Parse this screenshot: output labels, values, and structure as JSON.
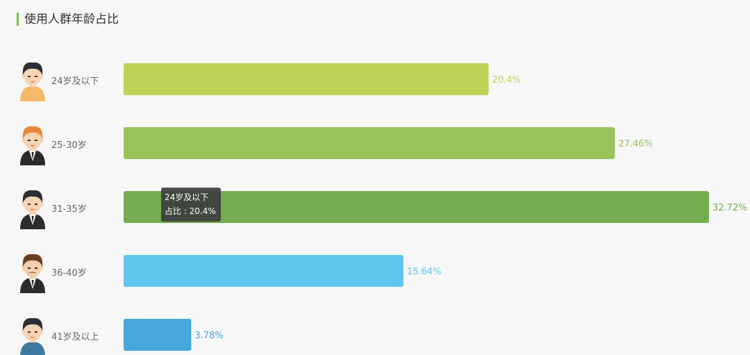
{
  "title": "使用人群年龄占比",
  "tooltip": {
    "line1": "24岁及以下",
    "line2": "占比 : 20.4%"
  },
  "icons": [
    "young-man-icon",
    "redhead-man-icon",
    "businessman-icon",
    "mustache-man-icon",
    "older-man-icon"
  ],
  "chart_data": {
    "type": "bar",
    "orientation": "horizontal",
    "title": "使用人群年龄占比",
    "categories": [
      "24岁及以下",
      "25-30岁",
      "31-35岁",
      "36-40岁",
      "41岁及以上"
    ],
    "values": [
      20.4,
      27.46,
      32.72,
      15.64,
      3.78
    ],
    "value_labels": [
      "20.4%",
      "27.46%",
      "32.72%",
      "15.64%",
      "3.78%"
    ],
    "colors": [
      "#bed255",
      "#9ac25a",
      "#74ad50",
      "#5ec6ec",
      "#45a7dc"
    ],
    "xlim": [
      0,
      32.72
    ],
    "grid": false,
    "legend": "none"
  }
}
